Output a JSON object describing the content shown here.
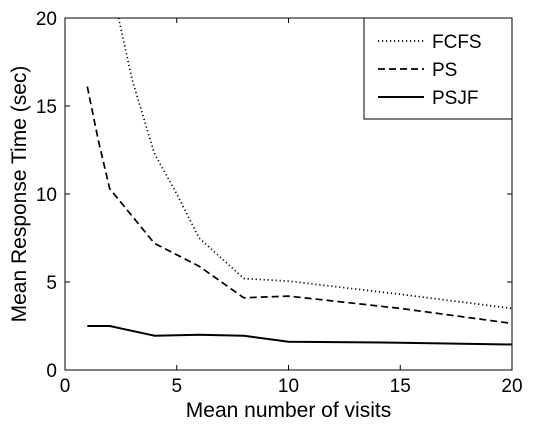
{
  "chart_data": {
    "type": "line",
    "title": "",
    "xlabel": "Mean number of visits",
    "ylabel": "Mean Response Time (sec)",
    "xlim": [
      0,
      20
    ],
    "ylim": [
      0,
      20
    ],
    "xticks": [
      0,
      5,
      10,
      15,
      20
    ],
    "yticks": [
      0,
      5,
      10,
      15,
      20
    ],
    "grid": false,
    "legend_position": "top-right",
    "series": [
      {
        "name": "FCFS",
        "style": "dotted",
        "color": "#000000",
        "x": [
          2.4,
          3,
          4,
          5,
          6,
          8,
          10,
          15,
          20
        ],
        "y": [
          20,
          16.5,
          12.3,
          10,
          7.5,
          5.2,
          5.05,
          4.3,
          3.5
        ]
      },
      {
        "name": "PS",
        "style": "dashed",
        "color": "#000000",
        "x": [
          1,
          1.5,
          2,
          4,
          6,
          8,
          10,
          15,
          20
        ],
        "y": [
          16.1,
          13,
          10.3,
          7.2,
          5.9,
          4.1,
          4.2,
          3.5,
          2.65
        ]
      },
      {
        "name": "PSJF",
        "style": "solid",
        "color": "#000000",
        "x": [
          1,
          2,
          4,
          6,
          8,
          10,
          15,
          20
        ],
        "y": [
          2.5,
          2.5,
          1.95,
          2.0,
          1.95,
          1.6,
          1.55,
          1.45
        ]
      }
    ]
  }
}
